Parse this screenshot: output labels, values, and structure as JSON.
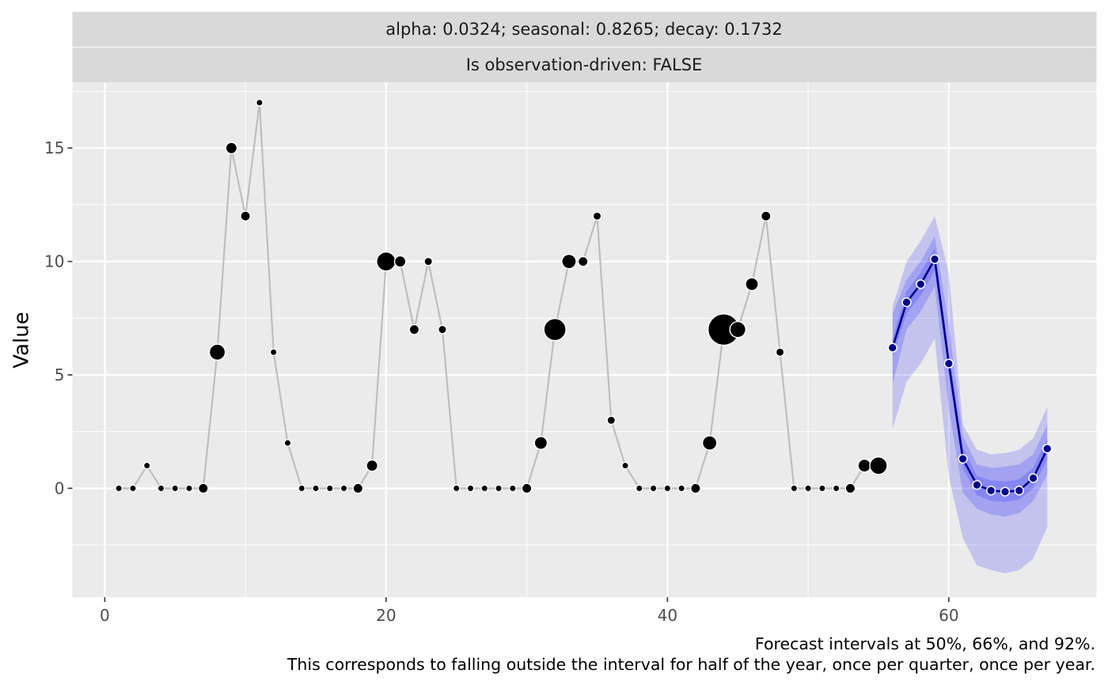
{
  "chart_data": {
    "type": "line",
    "facet_strips": [
      "alpha: 0.0324; seasonal: 0.8265; decay: 0.1732",
      "Is observation-driven: FALSE"
    ],
    "xlabel": "",
    "ylabel": "Value",
    "xlim": [
      -2.3,
      70.5
    ],
    "ylim": [
      -4.8,
      17.9
    ],
    "x_ticks": [
      0,
      20,
      40,
      60
    ],
    "x_tick_labels": [
      "0",
      "20",
      "40",
      "60"
    ],
    "y_ticks": [
      0,
      5,
      10,
      15
    ],
    "y_tick_labels": [
      "0",
      "5",
      "10",
      "15"
    ],
    "caption": [
      "Forecast intervals at 50%, 66%, and 92%.",
      "This corresponds to falling outside the interval for half of the year, once per quarter, once per year."
    ],
    "grid": true,
    "colors": {
      "panel": "#ebebeb",
      "grid": "#ffffff",
      "strip": "#d9d9d9",
      "observed_line": "#bebebe",
      "observed_point": "#000000",
      "forecast_line": "#00008b",
      "forecast_point": "#00008b",
      "interval_fill": "#0000ff"
    },
    "observed": {
      "x": [
        1,
        2,
        3,
        4,
        5,
        6,
        7,
        8,
        9,
        10,
        11,
        12,
        13,
        14,
        15,
        16,
        17,
        18,
        19,
        20,
        21,
        22,
        23,
        24,
        25,
        26,
        27,
        28,
        29,
        30,
        31,
        32,
        33,
        34,
        35,
        36,
        37,
        38,
        39,
        40,
        41,
        42,
        43,
        44,
        45,
        46,
        47,
        48,
        49,
        50,
        51,
        52,
        53,
        54,
        55
      ],
      "y": [
        0,
        0,
        1,
        0,
        0,
        0,
        0,
        6,
        15,
        12,
        17,
        6,
        2,
        0,
        0,
        0,
        0,
        0,
        1,
        10,
        10,
        7,
        10,
        7,
        0,
        0,
        0,
        0,
        0,
        0,
        2,
        7,
        10,
        10,
        12,
        3,
        1,
        0,
        0,
        0,
        0,
        0,
        2,
        7,
        7,
        9,
        12,
        6,
        0,
        0,
        0,
        0,
        0,
        1,
        1
      ],
      "point_size": [
        1,
        1,
        1,
        1,
        1,
        1,
        2,
        4,
        2.5,
        2,
        1,
        1,
        1,
        1,
        1,
        1,
        1,
        2,
        2.5,
        5,
        2.5,
        2,
        1.5,
        1.5,
        1,
        1,
        1,
        1,
        1,
        2,
        3,
        6,
        3.5,
        2,
        1.5,
        1.5,
        1,
        1,
        1,
        1,
        1,
        2,
        3.5,
        9,
        4,
        3,
        2,
        1.5,
        1,
        1,
        1,
        1,
        2,
        3,
        4.5
      ]
    },
    "forecast": {
      "x": [
        56,
        57,
        58,
        59,
        60,
        61,
        62,
        63,
        64,
        65,
        66,
        67
      ],
      "mean": [
        6.2,
        8.2,
        9.0,
        10.1,
        5.5,
        1.3,
        0.15,
        -0.1,
        -0.15,
        -0.1,
        0.45,
        1.75
      ],
      "interval_50": {
        "lower": [
          5.8,
          7.7,
          8.5,
          9.6,
          5.0,
          0.9,
          -0.3,
          -0.55,
          -0.6,
          -0.5,
          0.0,
          1.3
        ],
        "upper": [
          6.6,
          8.7,
          9.5,
          10.6,
          6.0,
          1.8,
          0.55,
          0.35,
          0.3,
          0.4,
          0.9,
          2.2
        ]
      },
      "interval_66": {
        "lower": [
          4.6,
          7.0,
          7.8,
          8.9,
          3.5,
          -0.2,
          -0.9,
          -1.15,
          -1.25,
          -1.1,
          -0.55,
          0.6
        ],
        "upper": [
          7.7,
          9.2,
          10.0,
          11.1,
          7.2,
          2.3,
          1.05,
          0.9,
          0.95,
          1.05,
          1.5,
          2.8
        ]
      },
      "interval_92": {
        "lower": [
          2.6,
          4.7,
          5.5,
          6.6,
          0.5,
          -2.2,
          -3.4,
          -3.6,
          -3.75,
          -3.6,
          -3.1,
          -1.7
        ],
        "upper": [
          8.0,
          10.0,
          10.9,
          12.0,
          9.5,
          2.8,
          1.7,
          1.5,
          1.55,
          1.7,
          2.2,
          3.6
        ]
      }
    }
  }
}
